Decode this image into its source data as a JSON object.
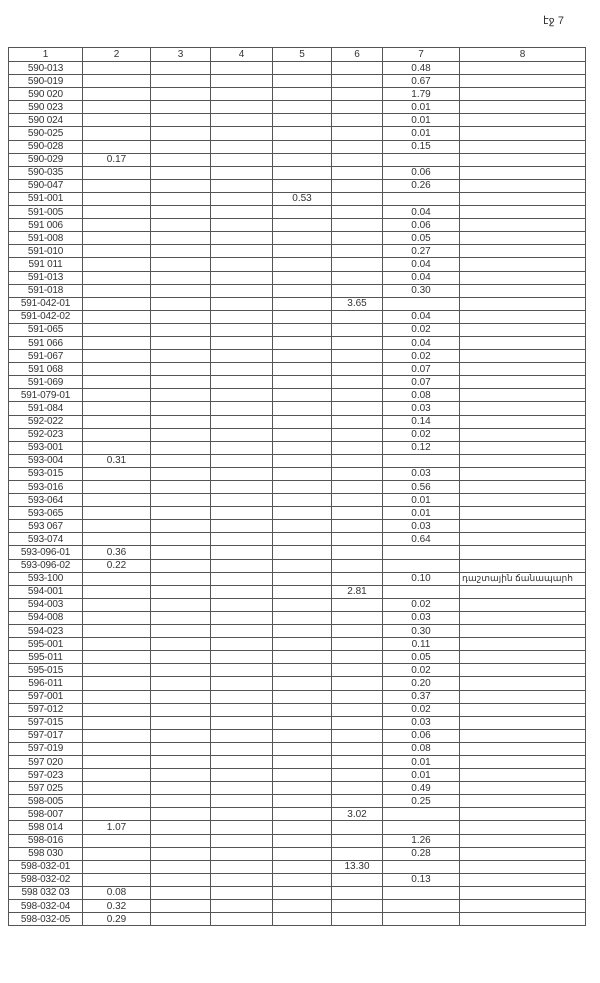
{
  "page_number": "էջ 7",
  "columns": [
    "1",
    "2",
    "3",
    "4",
    "5",
    "6",
    "7",
    "8"
  ],
  "rows": [
    [
      "590-013",
      "",
      "",
      "",
      "",
      "",
      "0.48",
      ""
    ],
    [
      "590-019",
      "",
      "",
      "",
      "",
      "",
      "0.67",
      ""
    ],
    [
      "590 020",
      "",
      "",
      "",
      "",
      "",
      "1.79",
      ""
    ],
    [
      "590 023",
      "",
      "",
      "",
      "",
      "",
      "0.01",
      ""
    ],
    [
      "590 024",
      "",
      "",
      "",
      "",
      "",
      "0.01",
      ""
    ],
    [
      "590-025",
      "",
      "",
      "",
      "",
      "",
      "0.01",
      ""
    ],
    [
      "590-028",
      "",
      "",
      "",
      "",
      "",
      "0.15",
      ""
    ],
    [
      "590-029",
      "0.17",
      "",
      "",
      "",
      "",
      "",
      ""
    ],
    [
      "590-035",
      "",
      "",
      "",
      "",
      "",
      "0.06",
      ""
    ],
    [
      "590-047",
      "",
      "",
      "",
      "",
      "",
      "0.26",
      ""
    ],
    [
      "591-001",
      "",
      "",
      "",
      "0.53",
      "",
      "",
      ""
    ],
    [
      "591-005",
      "",
      "",
      "",
      "",
      "",
      "0.04",
      ""
    ],
    [
      "591 006",
      "",
      "",
      "",
      "",
      "",
      "0.06",
      ""
    ],
    [
      "591-008",
      "",
      "",
      "",
      "",
      "",
      "0.05",
      ""
    ],
    [
      "591-010",
      "",
      "",
      "",
      "",
      "",
      "0.27",
      ""
    ],
    [
      "591 011",
      "",
      "",
      "",
      "",
      "",
      "0.04",
      ""
    ],
    [
      "591-013",
      "",
      "",
      "",
      "",
      "",
      "0.04",
      ""
    ],
    [
      "591-018",
      "",
      "",
      "",
      "",
      "",
      "0.30",
      ""
    ],
    [
      "591-042-01",
      "",
      "",
      "",
      "",
      "3.65",
      "",
      ""
    ],
    [
      "591-042-02",
      "",
      "",
      "",
      "",
      "",
      "0.04",
      ""
    ],
    [
      "591-065",
      "",
      "",
      "",
      "",
      "",
      "0.02",
      ""
    ],
    [
      "591 066",
      "",
      "",
      "",
      "",
      "",
      "0.04",
      ""
    ],
    [
      "591-067",
      "",
      "",
      "",
      "",
      "",
      "0.02",
      ""
    ],
    [
      "591 068",
      "",
      "",
      "",
      "",
      "",
      "0.07",
      ""
    ],
    [
      "591-069",
      "",
      "",
      "",
      "",
      "",
      "0.07",
      ""
    ],
    [
      "591-079-01",
      "",
      "",
      "",
      "",
      "",
      "0.08",
      ""
    ],
    [
      "591-084",
      "",
      "",
      "",
      "",
      "",
      "0.03",
      ""
    ],
    [
      "592-022",
      "",
      "",
      "",
      "",
      "",
      "0.14",
      ""
    ],
    [
      "592-023",
      "",
      "",
      "",
      "",
      "",
      "0.02",
      ""
    ],
    [
      "593-001",
      "",
      "",
      "",
      "",
      "",
      "0.12",
      ""
    ],
    [
      "593-004",
      "0.31",
      "",
      "",
      "",
      "",
      "",
      ""
    ],
    [
      "593-015",
      "",
      "",
      "",
      "",
      "",
      "0.03",
      ""
    ],
    [
      "593-016",
      "",
      "",
      "",
      "",
      "",
      "0.56",
      ""
    ],
    [
      "593-064",
      "",
      "",
      "",
      "",
      "",
      "0.01",
      ""
    ],
    [
      "593-065",
      "",
      "",
      "",
      "",
      "",
      "0.01",
      ""
    ],
    [
      "593 067",
      "",
      "",
      "",
      "",
      "",
      "0.03",
      ""
    ],
    [
      "593-074",
      "",
      "",
      "",
      "",
      "",
      "0.64",
      ""
    ],
    [
      "593-096-01",
      "0.36",
      "",
      "",
      "",
      "",
      "",
      ""
    ],
    [
      "593-096-02",
      "0.22",
      "",
      "",
      "",
      "",
      "",
      ""
    ],
    [
      "593-100",
      "",
      "",
      "",
      "",
      "",
      "0.10",
      "դաշտային ճանապարհ"
    ],
    [
      "594-001",
      "",
      "",
      "",
      "",
      "2.81",
      "",
      ""
    ],
    [
      "594-003",
      "",
      "",
      "",
      "",
      "",
      "0.02",
      ""
    ],
    [
      "594-008",
      "",
      "",
      "",
      "",
      "",
      "0.03",
      ""
    ],
    [
      "594-023",
      "",
      "",
      "",
      "",
      "",
      "0.30",
      ""
    ],
    [
      "595-001",
      "",
      "",
      "",
      "",
      "",
      "0.11",
      ""
    ],
    [
      "595-011",
      "",
      "",
      "",
      "",
      "",
      "0.05",
      ""
    ],
    [
      "595-015",
      "",
      "",
      "",
      "",
      "",
      "0.02",
      ""
    ],
    [
      "596-011",
      "",
      "",
      "",
      "",
      "",
      "0.20",
      ""
    ],
    [
      "597-001",
      "",
      "",
      "",
      "",
      "",
      "0.37",
      ""
    ],
    [
      "597-012",
      "",
      "",
      "",
      "",
      "",
      "0.02",
      ""
    ],
    [
      "597-015",
      "",
      "",
      "",
      "",
      "",
      "0.03",
      ""
    ],
    [
      "597-017",
      "",
      "",
      "",
      "",
      "",
      "0.06",
      ""
    ],
    [
      "597-019",
      "",
      "",
      "",
      "",
      "",
      "0.08",
      ""
    ],
    [
      "597 020",
      "",
      "",
      "",
      "",
      "",
      "0.01",
      ""
    ],
    [
      "597-023",
      "",
      "",
      "",
      "",
      "",
      "0.01",
      ""
    ],
    [
      "597 025",
      "",
      "",
      "",
      "",
      "",
      "0.49",
      ""
    ],
    [
      "598-005",
      "",
      "",
      "",
      "",
      "",
      "0.25",
      ""
    ],
    [
      "598-007",
      "",
      "",
      "",
      "",
      "3.02",
      "",
      ""
    ],
    [
      "598 014",
      "1.07",
      "",
      "",
      "",
      "",
      "",
      ""
    ],
    [
      "598-016",
      "",
      "",
      "",
      "",
      "",
      "1.26",
      ""
    ],
    [
      "598 030",
      "",
      "",
      "",
      "",
      "",
      "0.28",
      ""
    ],
    [
      "598-032-01",
      "",
      "",
      "",
      "",
      "13.30",
      "",
      ""
    ],
    [
      "598-032-02",
      "",
      "",
      "",
      "",
      "",
      "0.13",
      ""
    ],
    [
      "598 032 03",
      "0.08",
      "",
      "",
      "",
      "",
      "",
      ""
    ],
    [
      "598-032-04",
      "0.32",
      "",
      "",
      "",
      "",
      "",
      ""
    ],
    [
      "598-032-05",
      "0.29",
      "",
      "",
      "",
      "",
      "",
      ""
    ]
  ]
}
